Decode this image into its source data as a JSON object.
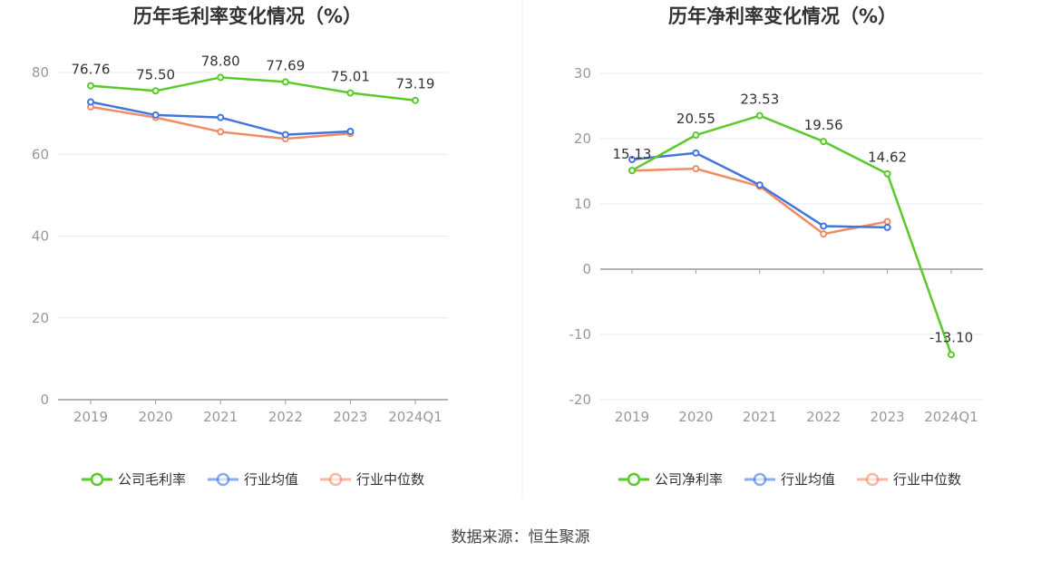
{
  "chart_data": [
    {
      "type": "line",
      "title": "历年毛利率变化情况（%）",
      "categories": [
        "2019",
        "2020",
        "2021",
        "2022",
        "2023",
        "2024Q1"
      ],
      "ylim": [
        0,
        80
      ],
      "yticks": [
        0,
        20,
        40,
        60,
        80
      ],
      "grid": true,
      "legend_position": "bottom",
      "series": [
        {
          "name": "公司毛利率",
          "color": "#5ac92a",
          "values": [
            76.76,
            75.5,
            78.8,
            77.69,
            75.01,
            73.19
          ],
          "labels": [
            "76.76",
            "75.50",
            "78.80",
            "77.69",
            "75.01",
            "73.19"
          ]
        },
        {
          "name": "行业均值",
          "color": "#4275de",
          "values": [
            72.8,
            69.6,
            69.0,
            64.8,
            65.6,
            null
          ]
        },
        {
          "name": "行业中位数",
          "color": "#f08c64",
          "values": [
            71.6,
            69.0,
            65.5,
            63.8,
            65.1,
            null
          ]
        }
      ]
    },
    {
      "type": "line",
      "title": "历年净利率变化情况（%）",
      "categories": [
        "2019",
        "2020",
        "2021",
        "2022",
        "2023",
        "2024Q1"
      ],
      "ylim": [
        -20,
        30
      ],
      "yticks": [
        -20,
        -10,
        0,
        10,
        20,
        30
      ],
      "grid": true,
      "legend_position": "bottom",
      "series": [
        {
          "name": "公司净利率",
          "color": "#5ac92a",
          "values": [
            15.13,
            20.55,
            23.53,
            19.56,
            14.62,
            -13.1
          ],
          "labels": [
            "15.13",
            "20.55",
            "23.53",
            "19.56",
            "14.62",
            "-13.10"
          ]
        },
        {
          "name": "行业均值",
          "color": "#4275de",
          "values": [
            16.8,
            17.8,
            12.9,
            6.6,
            6.4,
            null
          ]
        },
        {
          "name": "行业中位数",
          "color": "#f08c64",
          "values": [
            15.1,
            15.4,
            12.7,
            5.4,
            7.3,
            null
          ]
        }
      ]
    }
  ],
  "footer": {
    "source": "数据来源：恒生聚源"
  }
}
